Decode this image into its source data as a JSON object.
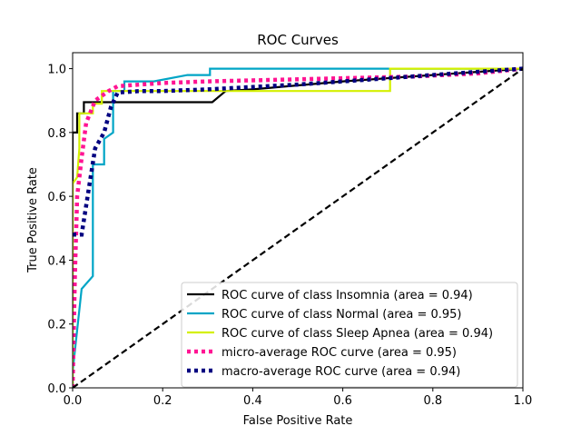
{
  "chart_data": {
    "type": "line",
    "title": "ROC Curves",
    "xlabel": "False Positive Rate",
    "ylabel": "True Positive Rate",
    "xlim": [
      0.0,
      1.0
    ],
    "ylim": [
      0.0,
      1.05
    ],
    "xticks": [
      "0.0",
      "0.2",
      "0.4",
      "0.6",
      "0.8",
      "1.0"
    ],
    "yticks": [
      "0.0",
      "0.2",
      "0.4",
      "0.6",
      "0.8",
      "1.0"
    ],
    "grid": false,
    "legend_position": "lower-right",
    "series": [
      {
        "name": "ROC curve of class Insomnia (area = 0.94)",
        "color": "#000000",
        "style": "solid",
        "x": [
          0.0,
          0.0,
          0.0,
          0.0,
          0.01,
          0.01,
          0.025,
          0.025,
          0.31,
          0.34,
          0.4,
          0.6,
          1.0
        ],
        "y": [
          0.0,
          0.65,
          0.8,
          0.8,
          0.8,
          0.86,
          0.86,
          0.895,
          0.895,
          0.93,
          0.935,
          0.96,
          1.0
        ]
      },
      {
        "name": "ROC curve of class Normal (area = 0.95)",
        "color": "#00a5c6",
        "style": "solid",
        "x": [
          0.0,
          0.0,
          0.02,
          0.02,
          0.045,
          0.045,
          0.07,
          0.07,
          0.09,
          0.09,
          0.115,
          0.115,
          0.18,
          0.255,
          0.305,
          0.305,
          0.6,
          1.0
        ],
        "y": [
          0.0,
          0.05,
          0.31,
          0.31,
          0.35,
          0.7,
          0.7,
          0.78,
          0.8,
          0.93,
          0.93,
          0.96,
          0.96,
          0.98,
          0.98,
          1.0,
          1.0,
          1.0
        ]
      },
      {
        "name": "ROC curve of class Sleep Apnea (area = 0.94)",
        "color": "#d4f000",
        "style": "solid",
        "x": [
          0.0,
          0.0,
          0.01,
          0.015,
          0.015,
          0.035,
          0.045,
          0.045,
          0.065,
          0.065,
          0.12,
          0.3,
          0.45,
          0.7,
          0.705,
          0.705,
          0.95,
          1.0
        ],
        "y": [
          0.0,
          0.64,
          0.66,
          0.75,
          0.86,
          0.86,
          0.86,
          0.89,
          0.89,
          0.93,
          0.93,
          0.93,
          0.93,
          0.93,
          0.93,
          1.0,
          1.0,
          1.0
        ]
      },
      {
        "name": "micro-average ROC curve (area = 0.95)",
        "color": "#ff1493",
        "style": "dotted",
        "x": [
          0.0,
          0.005,
          0.01,
          0.02,
          0.03,
          0.05,
          0.08,
          0.1,
          0.15,
          0.2,
          0.3,
          0.45,
          0.6,
          0.75,
          0.9,
          1.0
        ],
        "y": [
          0.0,
          0.35,
          0.6,
          0.72,
          0.83,
          0.9,
          0.93,
          0.945,
          0.95,
          0.955,
          0.96,
          0.965,
          0.97,
          0.975,
          0.985,
          1.0
        ]
      },
      {
        "name": "macro-average ROC curve (area = 0.94)",
        "color": "#000080",
        "style": "dotted",
        "x": [
          0.0,
          0.005,
          0.02,
          0.05,
          0.07,
          0.085,
          0.1,
          0.15,
          0.2,
          0.3,
          0.5,
          0.7,
          0.85,
          1.0
        ],
        "y": [
          0.48,
          0.48,
          0.48,
          0.75,
          0.8,
          0.88,
          0.925,
          0.93,
          0.93,
          0.935,
          0.95,
          0.97,
          0.985,
          1.0
        ]
      },
      {
        "name": "",
        "color": "#000000",
        "style": "dashed",
        "x": [
          0.0,
          1.0
        ],
        "y": [
          0.0,
          1.0
        ]
      }
    ]
  }
}
